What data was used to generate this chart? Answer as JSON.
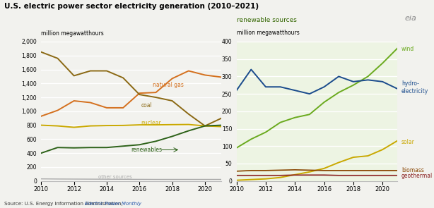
{
  "title": "U.S. electric power sector electricity generation (2010–2021)",
  "ylabel_left": "million megawatthours",
  "ylabel_right": "million megawatthours",
  "right_title": "renewable sources",
  "source": "Source: U.S. Energy Information Administration, ",
  "source_italic": "Electric Power Monthly",
  "years": [
    2010,
    2011,
    2012,
    2013,
    2014,
    2015,
    2016,
    2017,
    2018,
    2019,
    2020,
    2021
  ],
  "left": {
    "natural_gas": [
      930,
      1013,
      1150,
      1125,
      1050,
      1050,
      1260,
      1270,
      1470,
      1580,
      1520,
      1490
    ],
    "coal": [
      1850,
      1760,
      1510,
      1580,
      1580,
      1480,
      1240,
      1200,
      1150,
      960,
      790,
      900
    ],
    "nuclear": [
      800,
      790,
      770,
      790,
      795,
      797,
      805,
      805,
      808,
      810,
      790,
      780
    ],
    "renewables": [
      400,
      480,
      475,
      480,
      480,
      500,
      520,
      570,
      640,
      720,
      790,
      800
    ],
    "other_sources": [
      30,
      28,
      27,
      26,
      25,
      24,
      23,
      22,
      22,
      22,
      22,
      22
    ]
  },
  "right": {
    "wind": [
      95,
      120,
      140,
      168,
      182,
      191,
      226,
      254,
      275,
      300,
      338,
      380
    ],
    "hydro": [
      260,
      320,
      270,
      270,
      260,
      250,
      270,
      300,
      285,
      290,
      285,
      265
    ],
    "solar": [
      2,
      4,
      6,
      10,
      18,
      26,
      36,
      53,
      68,
      72,
      90,
      115
    ],
    "biomass": [
      28,
      30,
      30,
      31,
      32,
      31,
      30,
      30,
      30,
      30,
      30,
      30
    ],
    "geothermal": [
      16,
      16,
      16,
      16,
      17,
      17,
      17,
      16,
      16,
      16,
      16,
      16
    ]
  },
  "colors": {
    "natural_gas": "#d4701e",
    "coal": "#8b6914",
    "nuclear": "#c9a800",
    "renewables": "#2d6219",
    "other_sources": "#aaaaaa",
    "wind": "#6aaa1e",
    "hydro": "#1a4b8c",
    "solar": "#c9a800",
    "biomass": "#884400",
    "geothermal": "#8b2222"
  },
  "left_ylim": [
    0,
    2000
  ],
  "right_ylim": [
    0,
    400
  ],
  "left_yticks": [
    0,
    200,
    400,
    600,
    800,
    1000,
    1200,
    1400,
    1600,
    1800,
    2000
  ],
  "right_yticks": [
    0,
    50,
    100,
    150,
    200,
    250,
    300,
    350,
    400
  ],
  "background_color": "#f2f2ee",
  "right_bg": "#edf4e3"
}
